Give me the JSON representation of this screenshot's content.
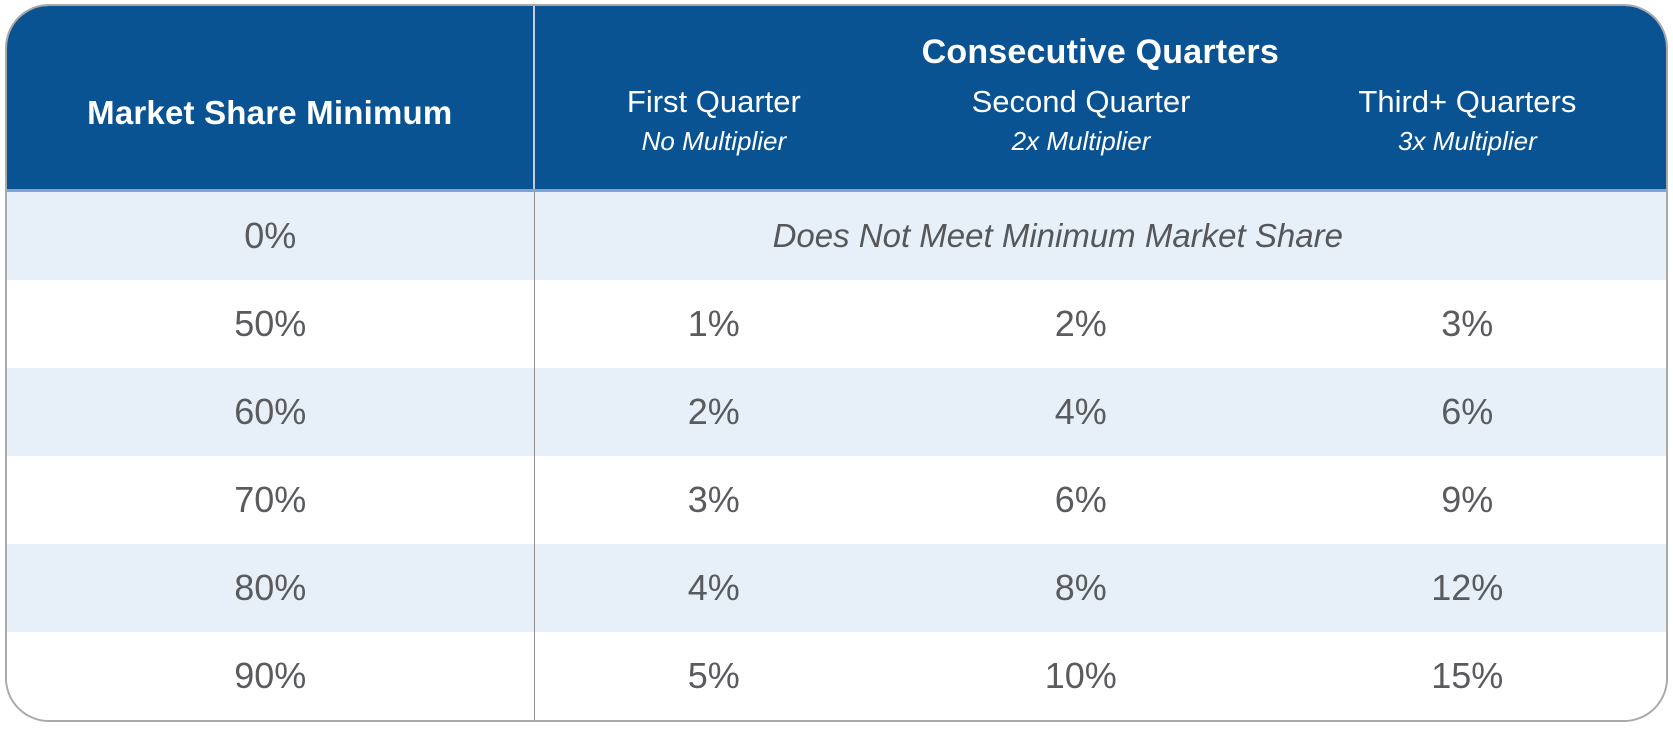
{
  "header": {
    "col1_label": "Market Share Minimum",
    "group_title": "Consecutive Quarters",
    "columns": [
      {
        "label": "First Quarter",
        "subtitle": "No Multiplier"
      },
      {
        "label": "Second Quarter",
        "subtitle": "2x Multiplier"
      },
      {
        "label": "Third+ Quarters",
        "subtitle": "3x Multiplier"
      }
    ]
  },
  "rows": [
    {
      "market_share": "0%",
      "note": "Does Not Meet Minimum Market Share"
    },
    {
      "market_share": "50%",
      "values": [
        "1%",
        "2%",
        "3%"
      ]
    },
    {
      "market_share": "60%",
      "values": [
        "2%",
        "4%",
        "6%"
      ]
    },
    {
      "market_share": "70%",
      "values": [
        "3%",
        "6%",
        "9%"
      ]
    },
    {
      "market_share": "80%",
      "values": [
        "4%",
        "8%",
        "12%"
      ]
    },
    {
      "market_share": "90%",
      "values": [
        "5%",
        "10%",
        "15%"
      ]
    }
  ],
  "colors": {
    "header_blue": "#0a5392",
    "header_divider": "#c3cdd9",
    "header_bottom_accent": "#85a3c9",
    "light_row_blue": "#e7f0f8",
    "white_row": "#ffffff",
    "data_text_gray": "#595b5e",
    "card_border_gray": "#a9a9a9"
  },
  "chart_data": {
    "type": "table",
    "title": "Consecutive Quarters",
    "row_header": "Market Share Minimum",
    "columns": [
      "First Quarter (No Multiplier)",
      "Second Quarter (2x Multiplier)",
      "Third+ Quarters (3x Multiplier)"
    ],
    "rows": [
      {
        "market_share_minimum": "0%",
        "values": [
          "Does Not Meet Minimum Market Share"
        ]
      },
      {
        "market_share_minimum": "50%",
        "values": [
          "1%",
          "2%",
          "3%"
        ]
      },
      {
        "market_share_minimum": "60%",
        "values": [
          "2%",
          "4%",
          "6%"
        ]
      },
      {
        "market_share_minimum": "70%",
        "values": [
          "3%",
          "6%",
          "9%"
        ]
      },
      {
        "market_share_minimum": "80%",
        "values": [
          "4%",
          "8%",
          "12%"
        ]
      },
      {
        "market_share_minimum": "90%",
        "values": [
          "5%",
          "10%",
          "15%"
        ]
      }
    ]
  }
}
